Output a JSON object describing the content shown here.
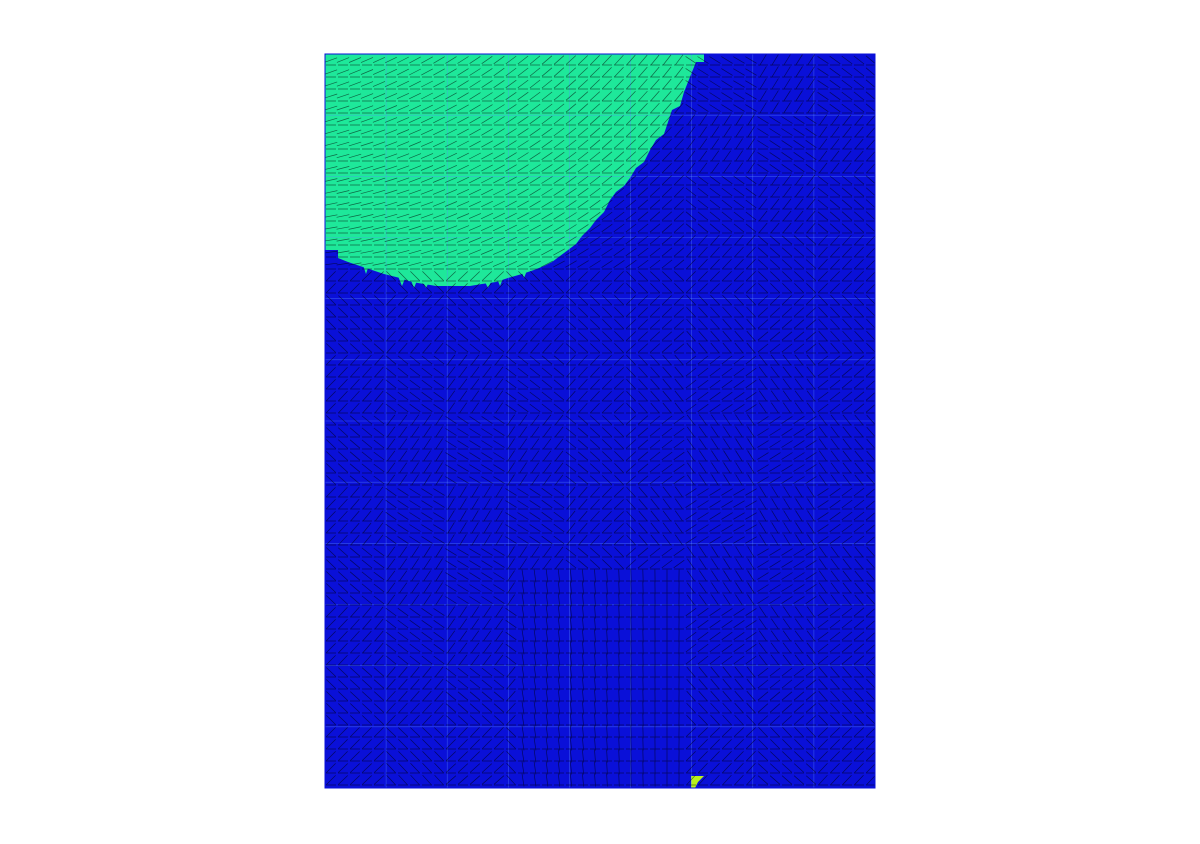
{
  "figure": {
    "colors": {
      "background": "#ffffff",
      "region_a": "#1ee89a",
      "region_b": "#0a10d8",
      "region_c": "#b8f01c",
      "mesh_line": "#000000",
      "grid_line": "#5a8cff"
    },
    "regions": [
      {
        "id": "region-a",
        "color_key": "region_a"
      },
      {
        "id": "region-b",
        "color_key": "region_b"
      },
      {
        "id": "region-c",
        "color_key": "region_c"
      }
    ]
  }
}
